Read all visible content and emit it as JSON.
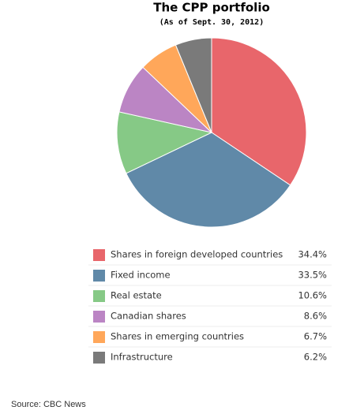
{
  "chart_data": {
    "type": "pie",
    "title": "The CPP portfolio",
    "subtitle": "(As of Sept. 30, 2012)",
    "categories": [
      "Shares in foreign developed countries",
      "Fixed income",
      "Real estate",
      "Canadian shares",
      "Shares in emerging countries",
      "Infrastructure"
    ],
    "values": [
      34.4,
      33.5,
      10.6,
      8.6,
      6.7,
      6.2
    ],
    "value_labels": [
      "34.4%",
      "33.5%",
      "10.6%",
      "8.6%",
      "6.7%",
      "6.2%"
    ],
    "colors": [
      "#e8666b",
      "#6089a8",
      "#86c986",
      "#bb85c4",
      "#ffa75a",
      "#7a7a7a"
    ]
  },
  "source": "Source: CBC News"
}
